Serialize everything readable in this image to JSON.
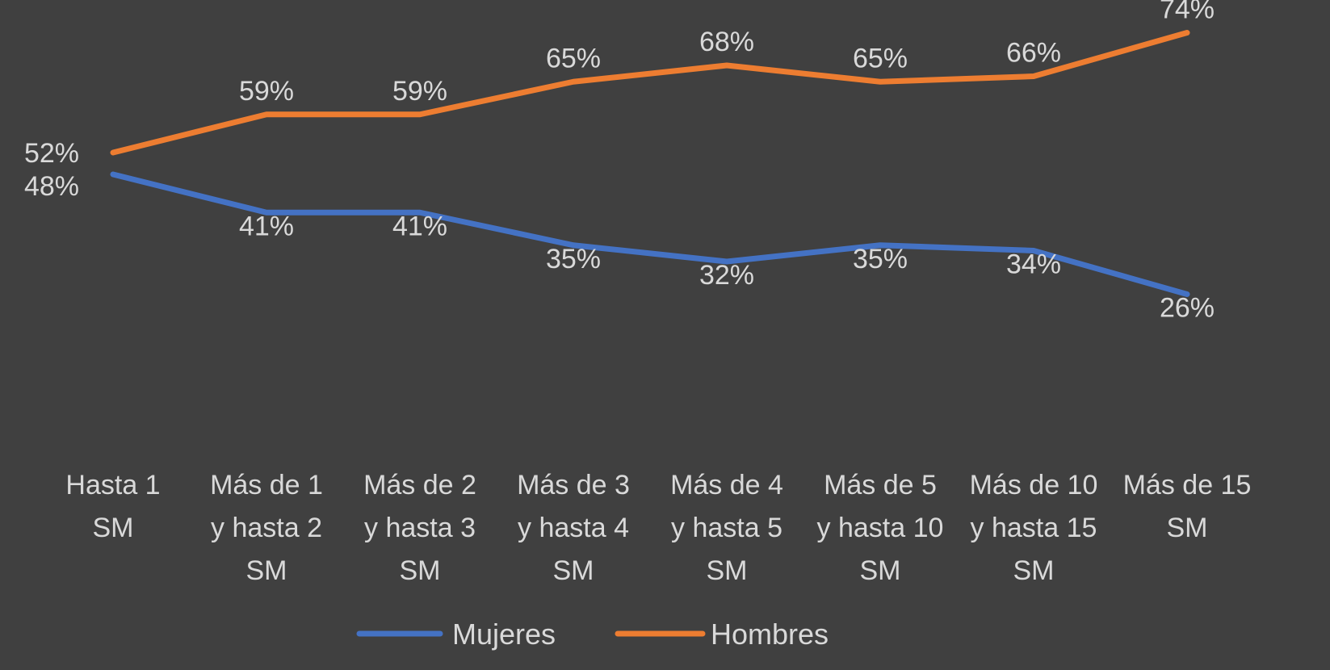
{
  "chart_data": {
    "type": "line",
    "categories": [
      [
        "Hasta 1",
        "SM"
      ],
      [
        "Más de 1",
        "y hasta 2",
        "SM"
      ],
      [
        "Más de 2",
        "y hasta 3",
        "SM"
      ],
      [
        "Más de 3",
        "y hasta 4",
        "SM"
      ],
      [
        "Más de 4",
        "y hasta 5",
        "SM"
      ],
      [
        "Más de 5",
        "y hasta 10",
        "SM"
      ],
      [
        "Más de 10",
        "y hasta 15",
        "SM"
      ],
      [
        "Más de 15",
        "SM"
      ]
    ],
    "series": [
      {
        "name": "Mujeres",
        "color": "#4472c4",
        "values": [
          48,
          41,
          41,
          35,
          32,
          35,
          34,
          26
        ],
        "labels": [
          "48%",
          "41%",
          "41%",
          "35%",
          "32%",
          "35%",
          "34%",
          "26%"
        ]
      },
      {
        "name": "Hombres",
        "color": "#ed7d31",
        "values": [
          52,
          59,
          59,
          65,
          68,
          65,
          66,
          74
        ],
        "labels": [
          "52%",
          "59%",
          "59%",
          "65%",
          "68%",
          "65%",
          "66%",
          "74%"
        ]
      }
    ],
    "ylim": [
      0,
      80
    ],
    "grid": false,
    "legend": "bottom",
    "background": "#404040",
    "text_color": "#d9d9d9"
  }
}
